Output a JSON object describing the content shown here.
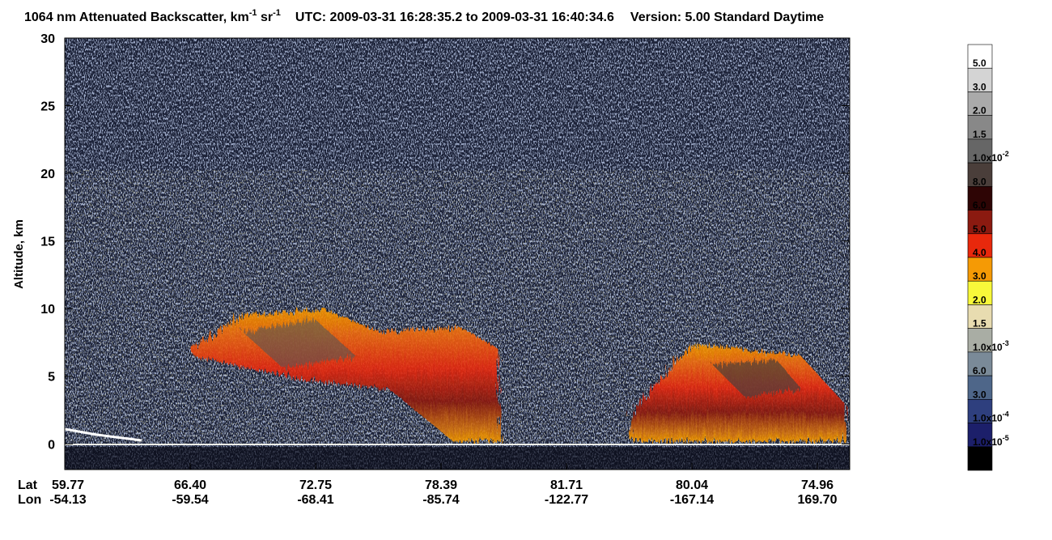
{
  "chart_data": {
    "type": "curtain",
    "title": [
      "1064 nm Attenuated Backscatter, km",
      "-1",
      " sr",
      "-1"
    ],
    "subtitle": "UTC:  2009-03-31 16:28:35.2  to  2009-03-31 16:40:34.6",
    "version": "Version: 5.00  Standard  Daytime",
    "ylabel": "Altitude, km",
    "ylim": [
      -1.9,
      30
    ],
    "yticks": [
      0,
      5,
      10,
      15,
      20,
      25,
      30
    ],
    "x_rows": [
      {
        "name": "Lat",
        "labels": [
          "59.77",
          "66.40",
          "72.75",
          "78.39",
          "81.71",
          "80.04",
          "74.96"
        ]
      },
      {
        "name": "Lon",
        "labels": [
          "-54.13",
          "-59.54",
          "-68.41",
          "-85.74",
          "-122.77",
          "-167.14",
          "169.70"
        ]
      }
    ],
    "colorbar": {
      "colors": [
        "#ffffff",
        "#d4d4d4",
        "#aaaaaa",
        "#888888",
        "#666666",
        "#4a3e3a",
        "#2e0505",
        "#8b1a10",
        "#e8280c",
        "#f59a05",
        "#f8f83a",
        "#e8dcb0",
        "#a9ada4",
        "#7a8a98",
        "#4e6689",
        "#2e3f7e",
        "#1c1f6a",
        "#000000"
      ],
      "labels": [
        "5.0",
        "3.0",
        "2.0",
        "1.5",
        {
          "base": "1.0x10",
          "exp": "-2"
        },
        "8.0",
        "6.0",
        "5.0",
        "4.0",
        "3.0",
        "2.0",
        "1.5",
        {
          "base": "1.0x10",
          "exp": "-3"
        },
        "6.0",
        "3.0",
        {
          "base": "1.0x10",
          "exp": "-4"
        },
        {
          "base": "1.0x10",
          "exp": "-5"
        }
      ]
    }
  }
}
